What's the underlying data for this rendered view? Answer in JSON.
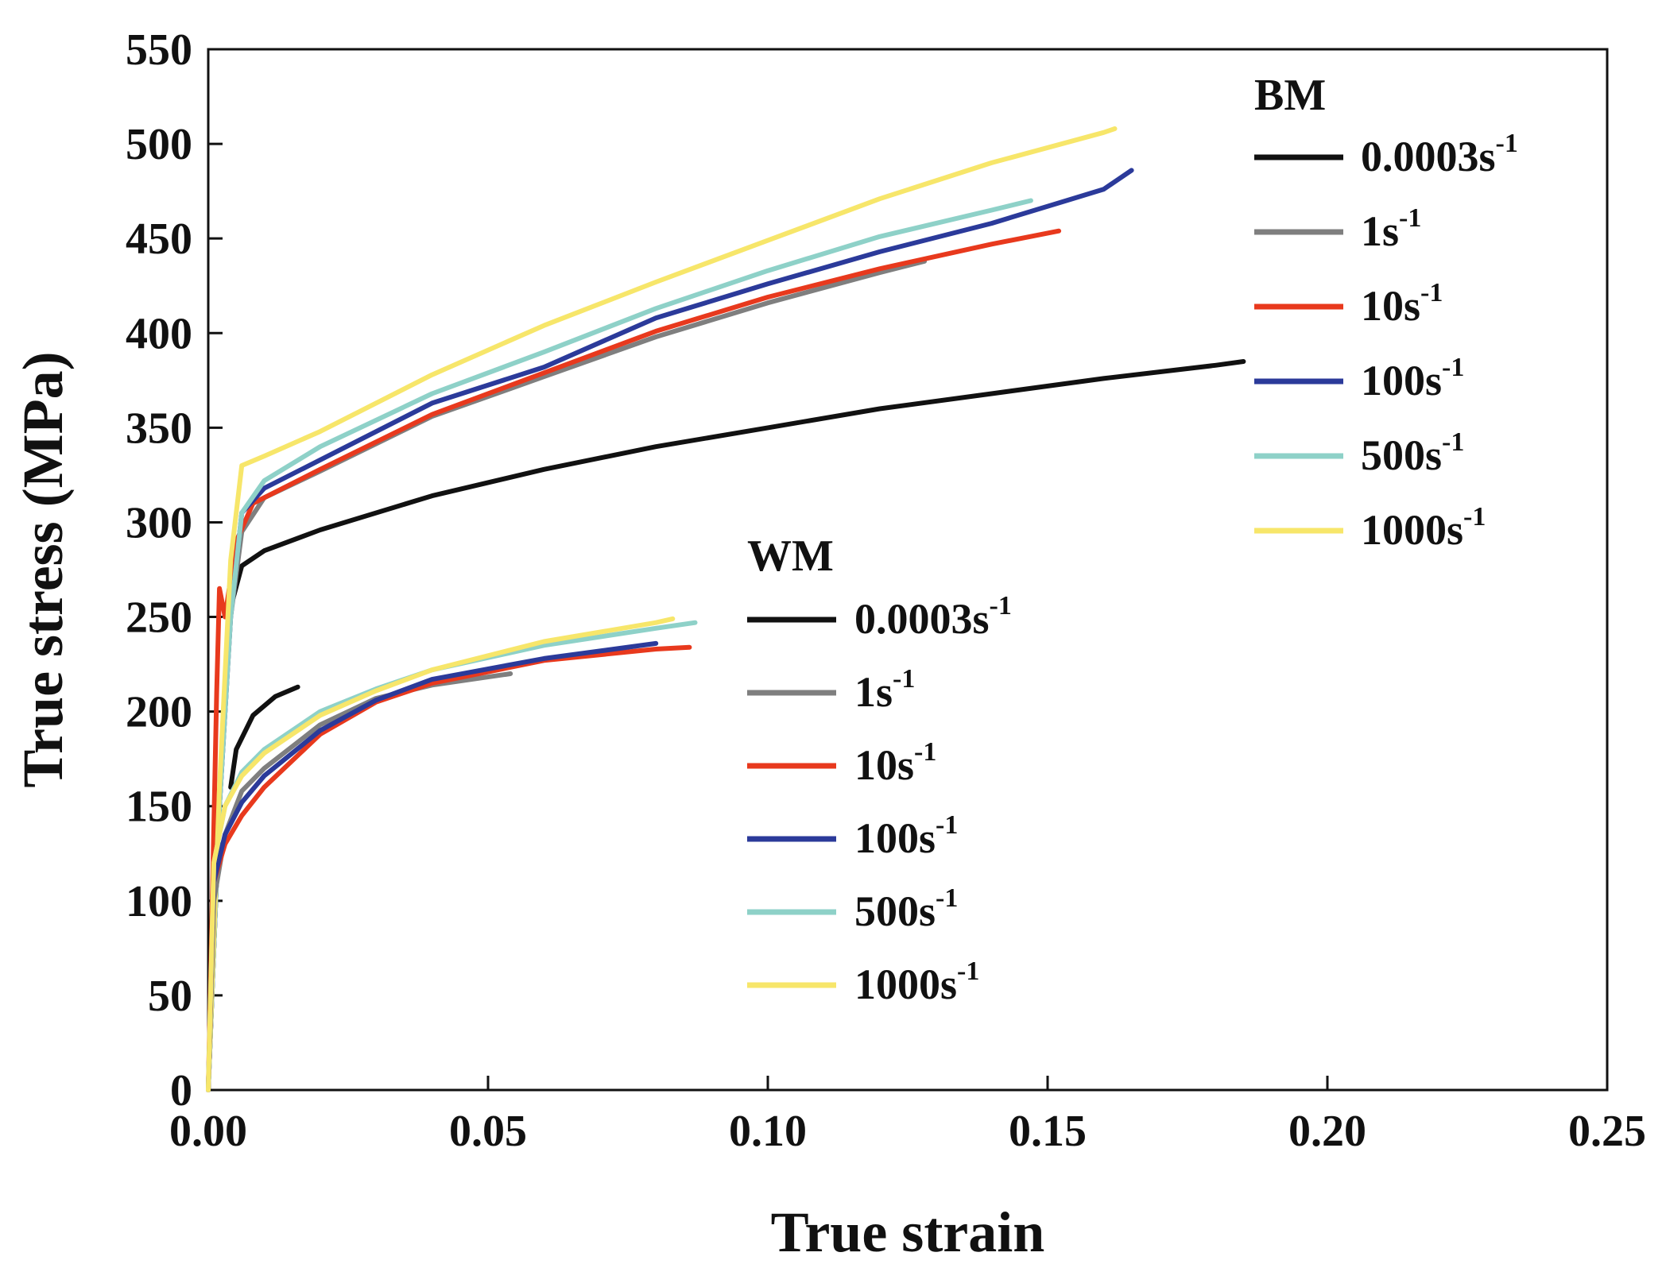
{
  "chart_data": {
    "type": "line",
    "xlabel": "True strain",
    "ylabel": "True stress (MPa)",
    "xlim": [
      0,
      0.25
    ],
    "ylim": [
      0,
      550
    ],
    "xticks": [
      0.0,
      0.05,
      0.1,
      0.15,
      0.2,
      0.25
    ],
    "xtick_labels": [
      "0.00",
      "0.05",
      "0.10",
      "0.15",
      "0.20",
      "0.25"
    ],
    "yticks": [
      0,
      50,
      100,
      150,
      200,
      250,
      300,
      350,
      400,
      450,
      500,
      550
    ],
    "ytick_labels": [
      "0",
      "50",
      "100",
      "150",
      "200",
      "250",
      "300",
      "350",
      "400",
      "450",
      "500",
      "550"
    ],
    "grid": false,
    "legend_groups": [
      {
        "title": "BM",
        "placement": "top-right",
        "entries": [
          {
            "base": "0.0003s",
            "sup": "-1"
          },
          {
            "base": "1s",
            "sup": "-1"
          },
          {
            "base": "10s",
            "sup": "-1"
          },
          {
            "base": "100s",
            "sup": "-1"
          },
          {
            "base": "500s",
            "sup": "-1"
          },
          {
            "base": "1000s",
            "sup": "-1"
          }
        ]
      },
      {
        "title": "WM",
        "placement": "center",
        "entries": [
          {
            "base": "0.0003s",
            "sup": "-1"
          },
          {
            "base": "1s",
            "sup": "-1"
          },
          {
            "base": "10s",
            "sup": "-1"
          },
          {
            "base": "100s",
            "sup": "-1"
          },
          {
            "base": "500s",
            "sup": "-1"
          },
          {
            "base": "1000s",
            "sup": "-1"
          }
        ]
      }
    ],
    "series": [
      {
        "group": "BM",
        "name": "0.0003s-1",
        "color": "#111111",
        "x": [
          0,
          0.002,
          0.004,
          0.006,
          0.01,
          0.02,
          0.04,
          0.06,
          0.08,
          0.1,
          0.12,
          0.14,
          0.16,
          0.18,
          0.185
        ],
        "y": [
          0,
          150,
          255,
          277,
          285,
          296,
          314,
          328,
          340,
          350,
          360,
          368,
          376,
          383,
          385
        ]
      },
      {
        "group": "BM",
        "name": "1s-1",
        "color": "#7f7f7f",
        "x": [
          0,
          0.002,
          0.004,
          0.006,
          0.01,
          0.02,
          0.04,
          0.06,
          0.08,
          0.1,
          0.12,
          0.128
        ],
        "y": [
          0,
          150,
          250,
          295,
          313,
          327,
          356,
          377,
          398,
          416,
          432,
          438
        ]
      },
      {
        "group": "BM",
        "name": "10s-1",
        "color": "#e8391d",
        "x": [
          0,
          0.0015,
          0.002,
          0.003,
          0.005,
          0.008,
          0.02,
          0.04,
          0.06,
          0.08,
          0.1,
          0.12,
          0.14,
          0.152
        ],
        "y": [
          0,
          210,
          265,
          250,
          290,
          310,
          328,
          357,
          379,
          401,
          419,
          434,
          447,
          454
        ]
      },
      {
        "group": "BM",
        "name": "100s-1",
        "color": "#2b3a9a",
        "x": [
          0,
          0.002,
          0.004,
          0.006,
          0.01,
          0.02,
          0.04,
          0.06,
          0.08,
          0.1,
          0.12,
          0.14,
          0.16,
          0.165
        ],
        "y": [
          0,
          150,
          250,
          305,
          318,
          333,
          363,
          382,
          408,
          426,
          443,
          458,
          476,
          486
        ]
      },
      {
        "group": "BM",
        "name": "500s-1",
        "color": "#8ed1c8",
        "x": [
          0,
          0.002,
          0.004,
          0.006,
          0.01,
          0.02,
          0.04,
          0.06,
          0.08,
          0.1,
          0.12,
          0.14,
          0.147
        ],
        "y": [
          0,
          150,
          250,
          305,
          322,
          340,
          368,
          390,
          413,
          433,
          451,
          465,
          470
        ]
      },
      {
        "group": "BM",
        "name": "1000s-1",
        "color": "#f7e66a",
        "x": [
          0,
          0.002,
          0.004,
          0.006,
          0.01,
          0.02,
          0.04,
          0.06,
          0.08,
          0.1,
          0.12,
          0.14,
          0.16,
          0.162
        ],
        "y": [
          0,
          160,
          280,
          330,
          335,
          348,
          378,
          404,
          427,
          449,
          471,
          490,
          506,
          508
        ]
      },
      {
        "group": "WM",
        "name": "0.0003s-1",
        "color": "#111111",
        "x": [
          0.004,
          0.005,
          0.008,
          0.012,
          0.016
        ],
        "y": [
          160,
          180,
          198,
          208,
          213
        ]
      },
      {
        "group": "WM",
        "name": "1s-1",
        "color": "#7f7f7f",
        "x": [
          0,
          0.001,
          0.003,
          0.006,
          0.01,
          0.02,
          0.03,
          0.04,
          0.054
        ],
        "y": [
          0,
          100,
          135,
          158,
          170,
          193,
          207,
          214,
          220
        ]
      },
      {
        "group": "WM",
        "name": "10s-1",
        "color": "#e8391d",
        "x": [
          0,
          0.001,
          0.003,
          0.006,
          0.01,
          0.02,
          0.03,
          0.04,
          0.06,
          0.08,
          0.086
        ],
        "y": [
          0,
          110,
          130,
          145,
          160,
          188,
          205,
          215,
          227,
          233,
          234
        ]
      },
      {
        "group": "WM",
        "name": "100s-1",
        "color": "#2b3a9a",
        "x": [
          0,
          0.001,
          0.003,
          0.006,
          0.01,
          0.02,
          0.03,
          0.04,
          0.06,
          0.08
        ],
        "y": [
          0,
          110,
          135,
          152,
          166,
          190,
          206,
          217,
          228,
          236
        ]
      },
      {
        "group": "WM",
        "name": "500s-1",
        "color": "#8ed1c8",
        "x": [
          0,
          0.001,
          0.003,
          0.006,
          0.01,
          0.02,
          0.03,
          0.04,
          0.06,
          0.08,
          0.087
        ],
        "y": [
          0,
          120,
          150,
          168,
          180,
          200,
          212,
          222,
          235,
          244,
          247
        ]
      },
      {
        "group": "WM",
        "name": "1000s-1",
        "color": "#f7e66a",
        "x": [
          0,
          0.001,
          0.003,
          0.006,
          0.01,
          0.02,
          0.03,
          0.04,
          0.06,
          0.08,
          0.083
        ],
        "y": [
          0,
          120,
          150,
          166,
          178,
          198,
          211,
          222,
          237,
          247,
          249
        ]
      }
    ]
  }
}
